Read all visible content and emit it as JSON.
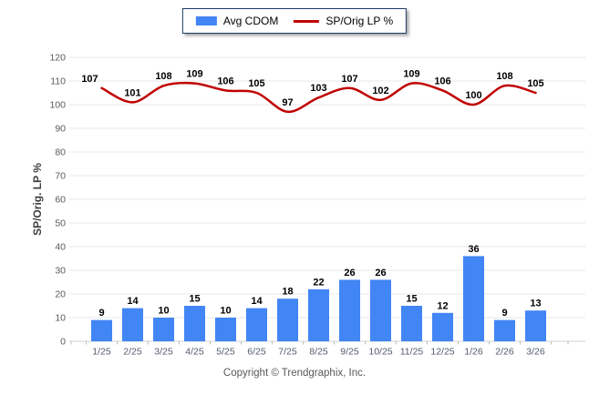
{
  "legend": {
    "items": [
      {
        "label": "Avg CDOM",
        "swatch": "bar",
        "color": "#4285F4"
      },
      {
        "label": "SP/Orig LP %",
        "swatch": "line",
        "color": "#C00000"
      }
    ]
  },
  "chart_data": {
    "type": "combo",
    "categories": [
      "1/25",
      "2/25",
      "3/25",
      "4/25",
      "5/25",
      "6/25",
      "7/25",
      "8/25",
      "9/25",
      "10/25",
      "11/25",
      "12/25",
      "1/26",
      "2/26",
      "3/26"
    ],
    "series": [
      {
        "name": "Avg CDOM",
        "type": "bar",
        "color": "#4285F4",
        "values": [
          9,
          14,
          10,
          15,
          10,
          14,
          18,
          22,
          26,
          26,
          15,
          12,
          36,
          9,
          13
        ]
      },
      {
        "name": "SP/Orig LP %",
        "type": "line",
        "color": "#C00000",
        "values": [
          107,
          101,
          108,
          109,
          106,
          105,
          97,
          103,
          107,
          102,
          109,
          106,
          100,
          108,
          105
        ]
      }
    ],
    "title": "",
    "xlabel": "",
    "ylabel": "SP/Orig. LP %",
    "ylim": [
      0,
      120
    ],
    "ytick_step": 10,
    "grid": true,
    "legend_position": "top-center",
    "value_labels": true
  },
  "footer": {
    "copyright": "Copyright © Trendgraphix, Inc."
  }
}
